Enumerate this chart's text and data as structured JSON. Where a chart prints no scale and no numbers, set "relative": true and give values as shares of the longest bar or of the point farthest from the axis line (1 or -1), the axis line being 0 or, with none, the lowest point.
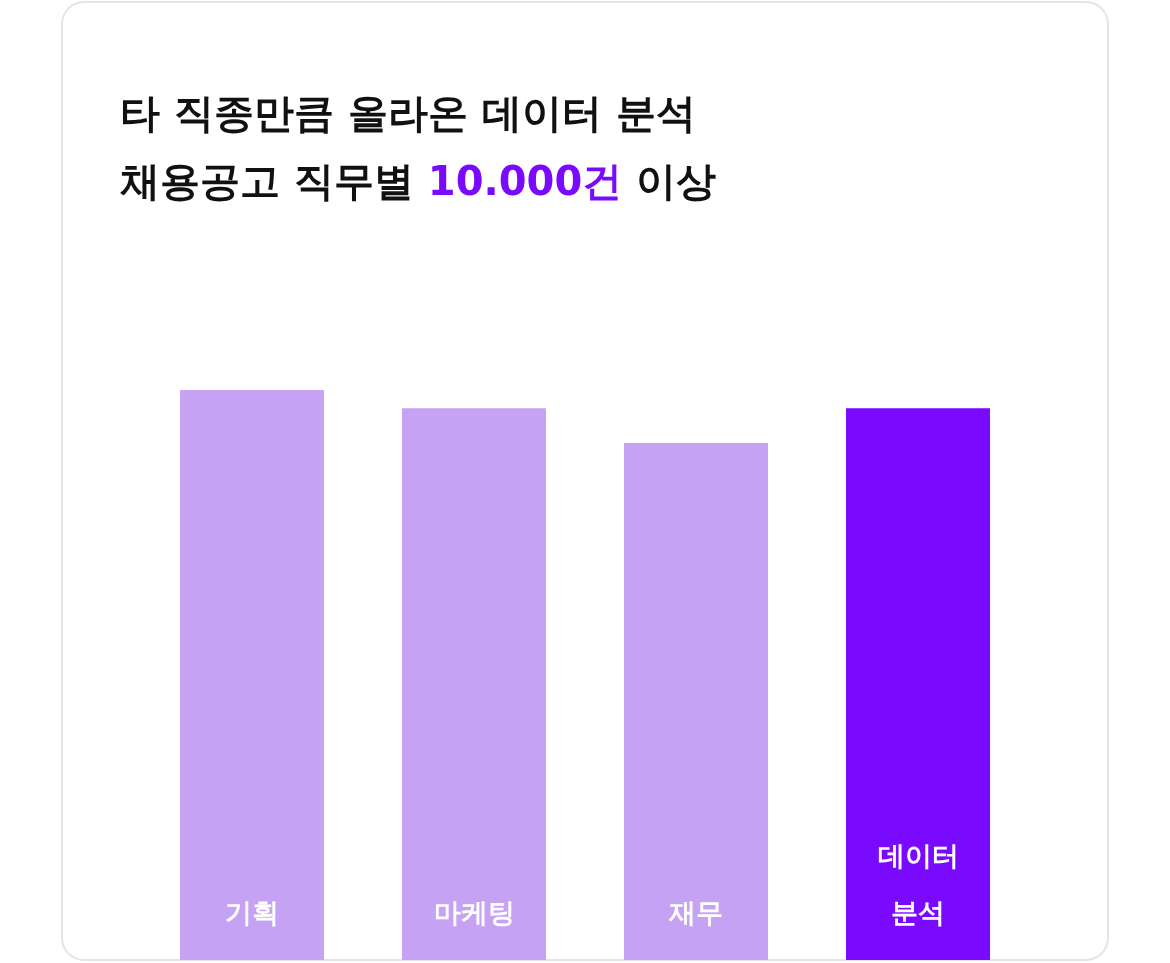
{
  "chart_data": {
    "type": "bar",
    "title": "타 직종만큼 올라온 데이터 분석 채용공고 직무별 **10.000건** 이상",
    "categories": [
      "기획",
      "마케팅",
      "재무",
      "데이터 분석"
    ],
    "values": [
      1,
      0.968,
      0.907,
      0.968
    ],
    "colors": [
      "#c6a2f4",
      "#c6a2f4",
      "#c6a2f4",
      "#7a0afe"
    ],
    "relative": true
  }
}
